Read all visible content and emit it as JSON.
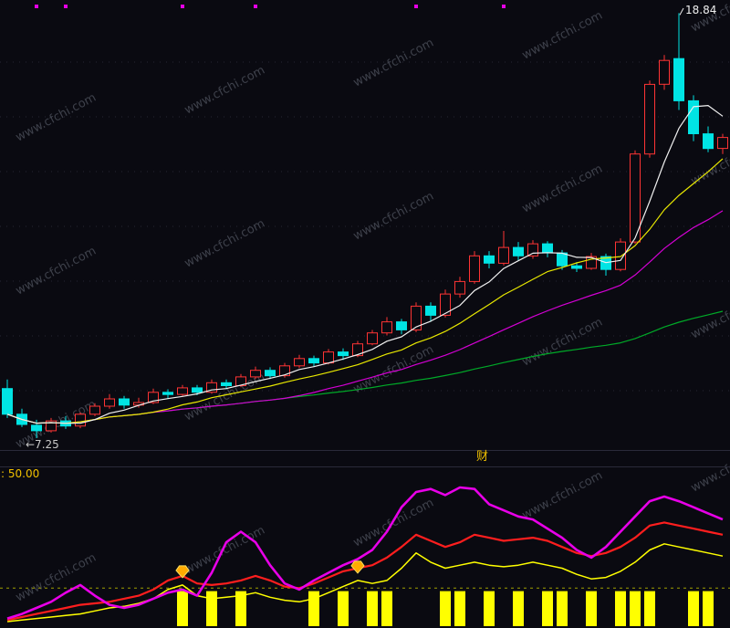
{
  "watermark": {
    "text": "www.cfchi.com"
  },
  "labels": {
    "high_price": "18.84",
    "low_price": "←7.25",
    "indicator_value": ": 50.00",
    "divider_label": "财"
  },
  "colors": {
    "background": "#0a0a11",
    "up": "#ff3434",
    "down": "#00e4e4",
    "ma5": "#f0f0f0",
    "ma10": "#e8e800",
    "ma20": "#d400d4",
    "ma60": "#00aa28",
    "grid": "#262634",
    "divider": "#2a2a3a",
    "baseline": "#a0a000",
    "marker": "#e800e8",
    "label_yellow": "#f0c000"
  },
  "chart_data": [
    {
      "type": "candlestick",
      "panel": "main",
      "title": "",
      "ylim": [
        7.0,
        19.0
      ],
      "annotations": {
        "high": 18.84,
        "low": 7.25
      },
      "top_marker_indices": [
        2,
        4,
        12,
        17,
        28,
        34
      ],
      "moving_average_windows": {
        "white": 5,
        "yellow": 10,
        "magenta": 20,
        "green": 60
      },
      "candles": [
        [
          8.6,
          8.85,
          7.8,
          7.9
        ],
        [
          7.9,
          8.05,
          7.55,
          7.62
        ],
        [
          7.6,
          7.75,
          7.25,
          7.45
        ],
        [
          7.45,
          7.8,
          7.4,
          7.72
        ],
        [
          7.72,
          7.85,
          7.5,
          7.58
        ],
        [
          7.58,
          7.95,
          7.52,
          7.9
        ],
        [
          7.9,
          8.2,
          7.85,
          8.12
        ],
        [
          8.12,
          8.45,
          8.05,
          8.32
        ],
        [
          8.32,
          8.4,
          8.05,
          8.15
        ],
        [
          8.15,
          8.35,
          8.08,
          8.22
        ],
        [
          8.22,
          8.6,
          8.18,
          8.5
        ],
        [
          8.5,
          8.58,
          8.32,
          8.44
        ],
        [
          8.44,
          8.7,
          8.4,
          8.62
        ],
        [
          8.62,
          8.7,
          8.42,
          8.5
        ],
        [
          8.5,
          8.85,
          8.46,
          8.76
        ],
        [
          8.76,
          8.85,
          8.58,
          8.68
        ],
        [
          8.68,
          9.0,
          8.64,
          8.92
        ],
        [
          8.92,
          9.2,
          8.86,
          9.1
        ],
        [
          9.1,
          9.18,
          8.86,
          8.95
        ],
        [
          8.95,
          9.3,
          8.9,
          9.22
        ],
        [
          9.22,
          9.52,
          9.16,
          9.42
        ],
        [
          9.42,
          9.5,
          9.2,
          9.3
        ],
        [
          9.3,
          9.68,
          9.26,
          9.6
        ],
        [
          9.6,
          9.7,
          9.38,
          9.5
        ],
        [
          9.5,
          9.9,
          9.46,
          9.82
        ],
        [
          9.82,
          10.2,
          9.78,
          10.12
        ],
        [
          10.12,
          10.55,
          10.05,
          10.42
        ],
        [
          10.42,
          10.5,
          10.08,
          10.2
        ],
        [
          10.2,
          10.95,
          10.14,
          10.85
        ],
        [
          10.85,
          10.95,
          10.42,
          10.6
        ],
        [
          10.6,
          11.3,
          10.54,
          11.18
        ],
        [
          11.18,
          11.65,
          11.08,
          11.52
        ],
        [
          11.52,
          12.35,
          11.46,
          12.22
        ],
        [
          12.22,
          12.35,
          11.88,
          12.02
        ],
        [
          12.02,
          12.9,
          11.96,
          12.45
        ],
        [
          12.45,
          12.6,
          12.08,
          12.22
        ],
        [
          12.22,
          12.65,
          12.14,
          12.55
        ],
        [
          12.55,
          12.62,
          12.18,
          12.3
        ],
        [
          12.3,
          12.38,
          11.84,
          11.95
        ],
        [
          11.95,
          12.05,
          11.78,
          11.88
        ],
        [
          11.88,
          12.3,
          11.84,
          12.2
        ],
        [
          12.2,
          12.28,
          11.68,
          11.85
        ],
        [
          11.85,
          12.7,
          11.8,
          12.6
        ],
        [
          12.6,
          15.1,
          12.55,
          15.0
        ],
        [
          15.0,
          17.0,
          14.9,
          16.9
        ],
        [
          16.9,
          17.7,
          16.75,
          17.55
        ],
        [
          17.6,
          18.84,
          16.2,
          16.45
        ],
        [
          16.45,
          16.6,
          15.35,
          15.55
        ],
        [
          15.55,
          15.75,
          15.05,
          15.15
        ],
        [
          15.15,
          15.55,
          15.0,
          15.45
        ]
      ]
    },
    {
      "type": "line",
      "panel": "indicator",
      "label": ": 50.00",
      "ylim": [
        0,
        100
      ],
      "baseline": 25,
      "series": [
        {
          "name": "fast-magenta",
          "color": "#e800e8",
          "values": [
            5,
            8,
            12,
            16,
            22,
            27,
            20,
            14,
            12,
            14,
            18,
            22,
            24,
            20,
            35,
            55,
            62,
            55,
            40,
            28,
            24,
            30,
            35,
            40,
            44,
            50,
            62,
            78,
            88,
            90,
            86,
            91,
            90,
            80,
            76,
            72,
            70,
            64,
            58,
            50,
            45,
            52,
            62,
            72,
            82,
            85,
            82,
            78,
            74,
            70
          ]
        },
        {
          "name": "mid-red",
          "color": "#ff1e1e",
          "values": [
            4,
            6,
            8,
            10,
            12,
            14,
            15,
            16,
            18,
            20,
            24,
            30,
            33,
            28,
            27,
            28,
            30,
            33,
            30,
            26,
            25,
            28,
            32,
            36,
            38,
            40,
            45,
            52,
            60,
            56,
            52,
            55,
            60,
            58,
            56,
            57,
            58,
            56,
            52,
            48,
            46,
            48,
            52,
            58,
            66,
            68,
            66,
            64,
            62,
            60
          ]
        },
        {
          "name": "slow-yellow",
          "color": "#ffff00",
          "values": [
            3,
            4,
            5,
            6,
            7,
            8,
            10,
            12,
            13,
            15,
            18,
            24,
            27,
            20,
            18,
            19,
            20,
            22,
            19,
            17,
            16,
            18,
            22,
            26,
            30,
            28,
            30,
            38,
            48,
            42,
            38,
            40,
            42,
            40,
            39,
            40,
            42,
            40,
            38,
            34,
            31,
            32,
            36,
            42,
            50,
            54,
            52,
            50,
            48,
            46
          ]
        }
      ],
      "signal_bars": {
        "color": "#ffff00",
        "indices": [
          12,
          14,
          16,
          21,
          23,
          25,
          26,
          30,
          31,
          33,
          35,
          37,
          38,
          40,
          42,
          43,
          44,
          47,
          48
        ]
      },
      "diamond_markers": {
        "indices": [
          12,
          24
        ]
      }
    }
  ]
}
